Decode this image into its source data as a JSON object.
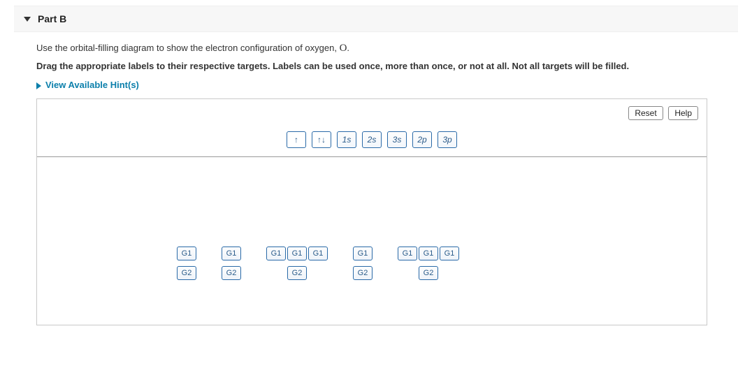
{
  "part": {
    "label": "Part B"
  },
  "instructions": {
    "line1_pre": "Use the orbital-filling diagram to show the electron configuration of oxygen, ",
    "line1_symbol": "O",
    "line1_post": ".",
    "line2": "Drag the appropriate labels to their respective targets. Labels can be used once, more than once, or not at all. Not all targets will be filled."
  },
  "hints": {
    "label": "View Available Hint(s)"
  },
  "buttons": {
    "reset": "Reset",
    "help": "Help"
  },
  "labels_bank": {
    "items": [
      {
        "text": "↑",
        "style": "white"
      },
      {
        "text": "↑↓",
        "style": "white"
      },
      {
        "text": "1s",
        "style": "blue"
      },
      {
        "text": "2s",
        "style": "blue"
      },
      {
        "text": "3s",
        "style": "blue"
      },
      {
        "text": "2p",
        "style": "blue"
      },
      {
        "text": "3p",
        "style": "blue"
      }
    ]
  },
  "targets": {
    "groups": [
      {
        "g1_count": 1,
        "g1_label": "G1",
        "g2_label": "G2"
      },
      {
        "g1_count": 1,
        "g1_label": "G1",
        "g2_label": "G2"
      },
      {
        "g1_count": 3,
        "g1_label": "G1",
        "g2_label": "G2"
      },
      {
        "g1_count": 1,
        "g1_label": "G1",
        "g2_label": "G2"
      },
      {
        "g1_count": 3,
        "g1_label": "G1",
        "g2_label": "G2"
      }
    ]
  },
  "colors": {
    "accent": "#0b7fab",
    "label_border": "#2a6aa8",
    "label_text": "#2a5b8a",
    "panel_border": "#c9c9c9"
  }
}
